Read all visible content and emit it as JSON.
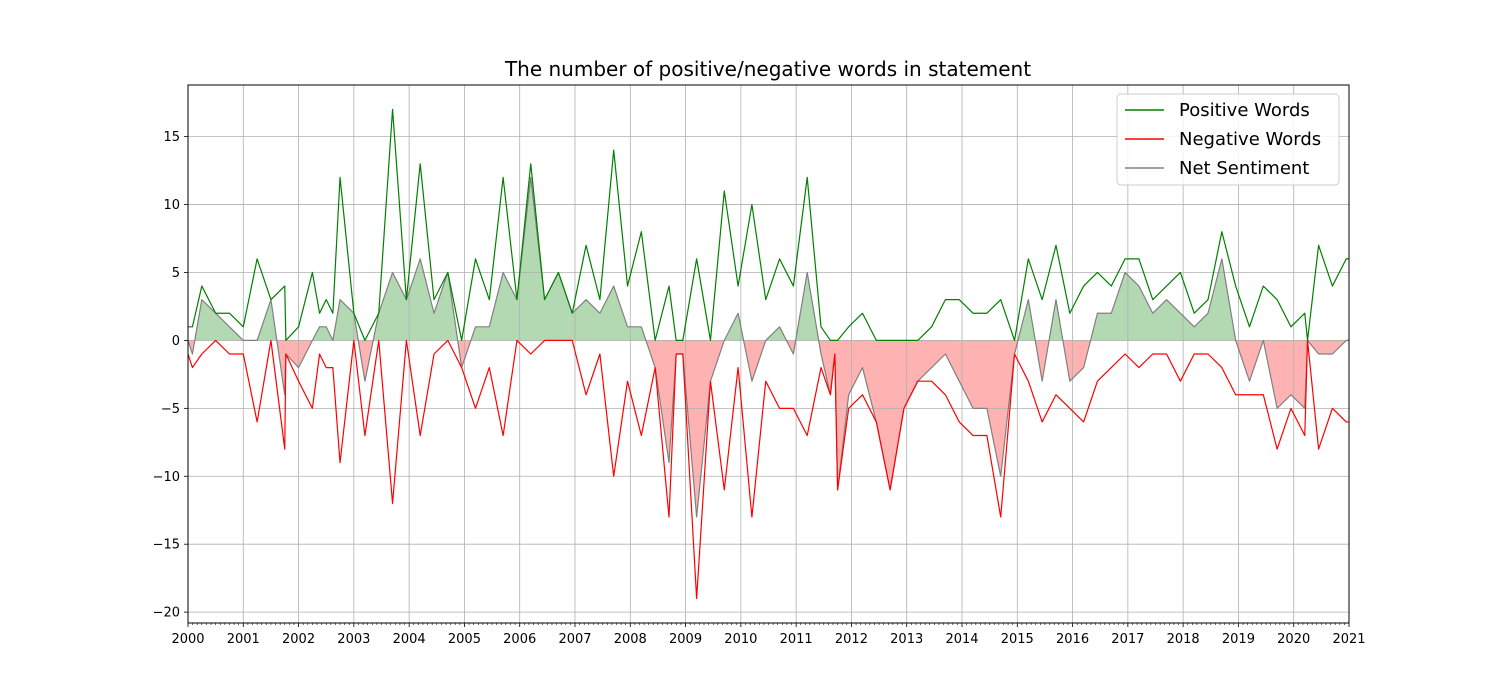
{
  "chart_data": {
    "type": "line",
    "title": "The number of positive/negative words in statement",
    "xlabel": "",
    "ylabel": "",
    "xlim": [
      2000.0,
      2021.0
    ],
    "ylim": [
      -20.8,
      18.8
    ],
    "x_ticks": [
      2000,
      2001,
      2002,
      2003,
      2004,
      2005,
      2006,
      2007,
      2008,
      2009,
      2010,
      2011,
      2012,
      2013,
      2014,
      2015,
      2016,
      2017,
      2018,
      2019,
      2020,
      2021
    ],
    "y_ticks": [
      -20,
      -15,
      -10,
      -5,
      0,
      5,
      10,
      15
    ],
    "grid": true,
    "legend_position": "top-right",
    "x": [
      2000.0,
      2000.08,
      2000.25,
      2000.5,
      2000.75,
      2001.0,
      2001.25,
      2001.5,
      2001.75,
      2001.77,
      2002.0,
      2002.25,
      2002.38,
      2002.5,
      2002.62,
      2002.75,
      2003.0,
      2003.2,
      2003.45,
      2003.7,
      2003.95,
      2004.2,
      2004.45,
      2004.7,
      2004.95,
      2005.2,
      2005.45,
      2005.7,
      2005.95,
      2006.2,
      2006.45,
      2006.7,
      2006.95,
      2007.2,
      2007.45,
      2007.7,
      2007.95,
      2008.2,
      2008.45,
      2008.7,
      2008.83,
      2008.95,
      2009.2,
      2009.45,
      2009.7,
      2009.95,
      2010.2,
      2010.45,
      2010.7,
      2010.95,
      2011.2,
      2011.45,
      2011.62,
      2011.7,
      2011.75,
      2011.95,
      2012.2,
      2012.45,
      2012.7,
      2012.95,
      2013.2,
      2013.45,
      2013.7,
      2013.95,
      2014.2,
      2014.45,
      2014.7,
      2014.95,
      2015.2,
      2015.45,
      2015.7,
      2015.95,
      2016.2,
      2016.45,
      2016.7,
      2016.95,
      2017.2,
      2017.45,
      2017.7,
      2017.95,
      2018.2,
      2018.45,
      2018.7,
      2018.95,
      2019.2,
      2019.45,
      2019.7,
      2019.95,
      2020.2,
      2020.25,
      2020.45,
      2020.7,
      2020.95,
      2021.0
    ],
    "series": [
      {
        "name": "Positive Words",
        "color": "#008000",
        "values": [
          1,
          1,
          4,
          2,
          2,
          1,
          6,
          3,
          4,
          0,
          1,
          5,
          2,
          3,
          2,
          12,
          2,
          0,
          2,
          17,
          3,
          13,
          3,
          5,
          0,
          6,
          3,
          12,
          3,
          13,
          3,
          5,
          2,
          7,
          3,
          14,
          4,
          8,
          0,
          4,
          0,
          0,
          6,
          0,
          11,
          4,
          10,
          3,
          6,
          4,
          12,
          1,
          0,
          0,
          0,
          1,
          2,
          0,
          0,
          0,
          0,
          1,
          3,
          3,
          2,
          2,
          3,
          0,
          6,
          3,
          7,
          2,
          4,
          5,
          4,
          6,
          6,
          3,
          4,
          5,
          2,
          3,
          8,
          4,
          1,
          4,
          3,
          1,
          2,
          0,
          7,
          4,
          6,
          6
        ]
      },
      {
        "name": "Negative Words",
        "color": "#ff0000",
        "values": [
          -1,
          -2,
          -1,
          0,
          -1,
          -1,
          -6,
          0,
          -8,
          -1,
          -3,
          -5,
          -1,
          -2,
          -2,
          -9,
          0,
          -7,
          0,
          -12,
          0,
          -7,
          -1,
          0,
          -2,
          -5,
          -2,
          -7,
          0,
          -1,
          0,
          0,
          0,
          -4,
          -1,
          -10,
          -3,
          -7,
          -2,
          -13,
          -1,
          -1,
          -19,
          -3,
          -11,
          -2,
          -13,
          -3,
          -5,
          -5,
          -7,
          -2,
          -4,
          -1,
          -11,
          -5,
          -4,
          -6,
          -11,
          -5,
          -3,
          -3,
          -4,
          -6,
          -7,
          -7,
          -13,
          -1,
          -3,
          -6,
          -4,
          -5,
          -6,
          -3,
          -2,
          -1,
          -2,
          -1,
          -1,
          -3,
          -1,
          -1,
          -2,
          -4,
          -4,
          -4,
          -8,
          -5,
          -7,
          0,
          -8,
          -5,
          -6,
          -6
        ]
      },
      {
        "name": "Net Sentiment",
        "color": "#808080",
        "values": [
          0,
          -1,
          3,
          2,
          1,
          0,
          0,
          3,
          -4,
          -1,
          -2,
          0,
          1,
          1,
          0,
          3,
          2,
          -3,
          2,
          5,
          3,
          6,
          2,
          5,
          -2,
          1,
          1,
          5,
          3,
          12,
          3,
          5,
          2,
          3,
          2,
          4,
          1,
          1,
          -2,
          -9,
          -1,
          -1,
          -13,
          -3,
          0,
          2,
          -3,
          0,
          1,
          -1,
          5,
          -1,
          -4,
          -1,
          -11,
          -4,
          -2,
          -6,
          -11,
          -5,
          -3,
          -2,
          -1,
          -3,
          -5,
          -5,
          -10,
          -1,
          3,
          -3,
          3,
          -3,
          -2,
          2,
          2,
          5,
          4,
          2,
          3,
          2,
          1,
          2,
          6,
          0,
          -3,
          0,
          -5,
          -4,
          -5,
          0,
          -1,
          -1,
          0,
          0
        ]
      }
    ]
  }
}
